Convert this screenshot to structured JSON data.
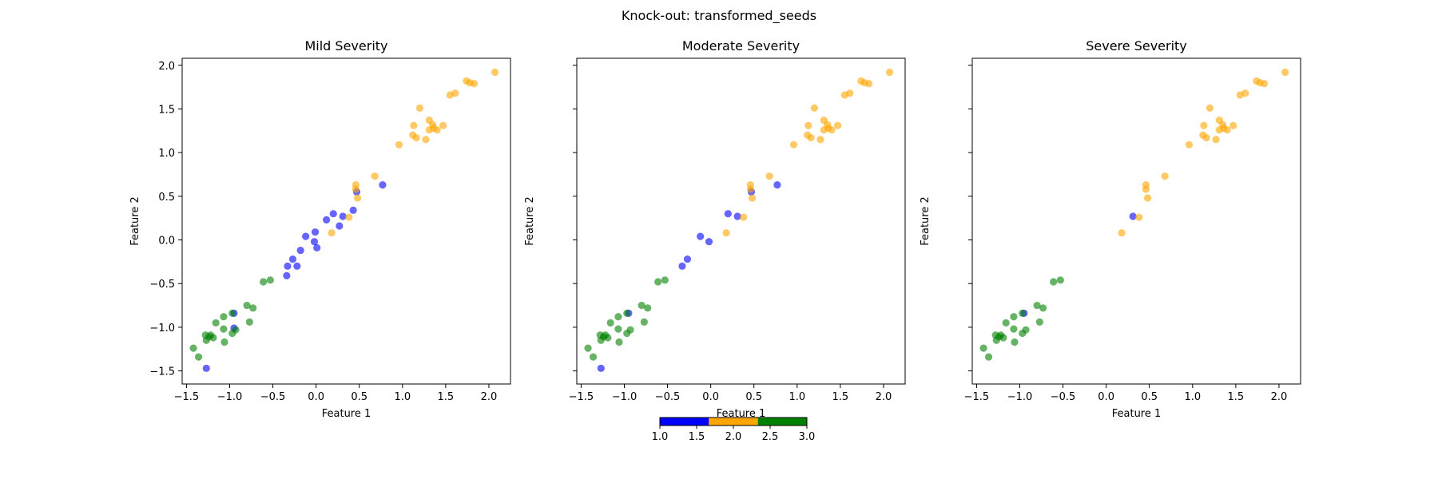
{
  "figure": {
    "title": "Knock-out: transformed_seeds"
  },
  "colorbar": {
    "colors": [
      "#0000ff",
      "#ffa500",
      "#008000"
    ],
    "ticks": [
      "1.0",
      "1.5",
      "2.0",
      "2.5",
      "3.0"
    ],
    "range": [
      1.0,
      3.0
    ]
  },
  "chart_data": [
    {
      "type": "scatter",
      "title": "Mild Severity",
      "xlabel": "Feature 1",
      "ylabel": "Feature 2",
      "xlim": [
        -1.55,
        2.25
      ],
      "ylim": [
        -1.65,
        2.08
      ],
      "xticks": [
        "−1.5",
        "−1.0",
        "−0.5",
        "0.0",
        "0.5",
        "1.0",
        "1.5",
        "2.0"
      ],
      "yticks": [
        "−1.5",
        "−1.0",
        "−0.5",
        "0.0",
        "0.5",
        "1.0",
        "1.5",
        "2.0"
      ],
      "series": [
        {
          "color": "#0000ff",
          "points": [
            [
              -1.27,
              -1.47
            ],
            [
              -0.95,
              -0.84
            ],
            [
              -0.95,
              -1.01
            ],
            [
              -0.34,
              -0.41
            ],
            [
              -0.33,
              -0.3
            ],
            [
              -0.27,
              -0.22
            ],
            [
              -0.22,
              -0.3
            ],
            [
              -0.18,
              -0.12
            ],
            [
              -0.12,
              0.04
            ],
            [
              -0.02,
              -0.02
            ],
            [
              -0.01,
              0.09
            ],
            [
              0.01,
              -0.09
            ],
            [
              0.12,
              0.23
            ],
            [
              0.2,
              0.3
            ],
            [
              0.27,
              0.16
            ],
            [
              0.31,
              0.27
            ],
            [
              0.43,
              0.34
            ],
            [
              0.47,
              0.55
            ],
            [
              0.77,
              0.63
            ]
          ]
        },
        {
          "color": "#ffa500",
          "points": [
            [
              0.18,
              0.08
            ],
            [
              0.38,
              0.26
            ],
            [
              0.46,
              0.63
            ],
            [
              0.46,
              0.58
            ],
            [
              0.48,
              0.48
            ],
            [
              0.68,
              0.73
            ],
            [
              0.96,
              1.09
            ],
            [
              1.12,
              1.2
            ],
            [
              1.13,
              1.31
            ],
            [
              1.16,
              1.17
            ],
            [
              1.2,
              1.51
            ],
            [
              1.27,
              1.15
            ],
            [
              1.31,
              1.37
            ],
            [
              1.31,
              1.26
            ],
            [
              1.35,
              1.32
            ],
            [
              1.36,
              1.28
            ],
            [
              1.4,
              1.26
            ],
            [
              1.47,
              1.31
            ],
            [
              1.55,
              1.66
            ],
            [
              1.61,
              1.68
            ],
            [
              1.74,
              1.82
            ],
            [
              1.78,
              1.8
            ],
            [
              1.83,
              1.79
            ],
            [
              2.07,
              1.92
            ]
          ]
        },
        {
          "color": "#008000",
          "points": [
            [
              -1.42,
              -1.24
            ],
            [
              -1.36,
              -1.34
            ],
            [
              -1.28,
              -1.09
            ],
            [
              -1.27,
              -1.15
            ],
            [
              -1.24,
              -1.11
            ],
            [
              -1.22,
              -1.09
            ],
            [
              -1.19,
              -1.12
            ],
            [
              -1.16,
              -0.95
            ],
            [
              -1.07,
              -0.88
            ],
            [
              -1.07,
              -1.02
            ],
            [
              -1.06,
              -1.17
            ],
            [
              -0.97,
              -0.84
            ],
            [
              -0.97,
              -1.07
            ],
            [
              -0.93,
              -1.03
            ],
            [
              -0.8,
              -0.75
            ],
            [
              -0.77,
              -0.94
            ],
            [
              -0.73,
              -0.78
            ],
            [
              -0.61,
              -0.48
            ],
            [
              -0.53,
              -0.46
            ]
          ]
        }
      ]
    },
    {
      "type": "scatter",
      "title": "Moderate Severity",
      "xlabel": "Feature 1",
      "ylabel": "Feature 2",
      "xlim": [
        -1.55,
        2.25
      ],
      "ylim": [
        -1.65,
        2.08
      ],
      "xticks": [
        "−1.5",
        "−1.0",
        "−0.5",
        "0.0",
        "0.5",
        "1.0",
        "1.5",
        "2.0"
      ],
      "yticks": [],
      "series": [
        {
          "color": "#0000ff",
          "points": [
            [
              -1.27,
              -1.47
            ],
            [
              -0.95,
              -0.84
            ],
            [
              -0.33,
              -0.3
            ],
            [
              -0.27,
              -0.22
            ],
            [
              -0.12,
              0.04
            ],
            [
              -0.02,
              -0.02
            ],
            [
              0.2,
              0.3
            ],
            [
              0.31,
              0.27
            ],
            [
              0.47,
              0.55
            ],
            [
              0.77,
              0.63
            ]
          ]
        },
        {
          "color": "#ffa500",
          "points": [
            [
              0.18,
              0.08
            ],
            [
              0.38,
              0.26
            ],
            [
              0.46,
              0.63
            ],
            [
              0.46,
              0.58
            ],
            [
              0.48,
              0.48
            ],
            [
              0.68,
              0.73
            ],
            [
              0.96,
              1.09
            ],
            [
              1.12,
              1.2
            ],
            [
              1.13,
              1.31
            ],
            [
              1.16,
              1.17
            ],
            [
              1.2,
              1.51
            ],
            [
              1.27,
              1.15
            ],
            [
              1.31,
              1.37
            ],
            [
              1.31,
              1.26
            ],
            [
              1.35,
              1.32
            ],
            [
              1.36,
              1.28
            ],
            [
              1.4,
              1.26
            ],
            [
              1.47,
              1.31
            ],
            [
              1.55,
              1.66
            ],
            [
              1.61,
              1.68
            ],
            [
              1.74,
              1.82
            ],
            [
              1.78,
              1.8
            ],
            [
              1.83,
              1.79
            ],
            [
              2.07,
              1.92
            ]
          ]
        },
        {
          "color": "#008000",
          "points": [
            [
              -1.42,
              -1.24
            ],
            [
              -1.36,
              -1.34
            ],
            [
              -1.28,
              -1.09
            ],
            [
              -1.27,
              -1.15
            ],
            [
              -1.24,
              -1.11
            ],
            [
              -1.22,
              -1.09
            ],
            [
              -1.19,
              -1.12
            ],
            [
              -1.16,
              -0.95
            ],
            [
              -1.07,
              -0.88
            ],
            [
              -1.07,
              -1.02
            ],
            [
              -1.06,
              -1.17
            ],
            [
              -0.97,
              -0.84
            ],
            [
              -0.97,
              -1.07
            ],
            [
              -0.93,
              -1.03
            ],
            [
              -0.8,
              -0.75
            ],
            [
              -0.77,
              -0.94
            ],
            [
              -0.73,
              -0.78
            ],
            [
              -0.61,
              -0.48
            ],
            [
              -0.53,
              -0.46
            ]
          ]
        }
      ]
    },
    {
      "type": "scatter",
      "title": "Severe Severity",
      "xlabel": "Feature 1",
      "ylabel": "Feature 2",
      "xlim": [
        -1.55,
        2.25
      ],
      "ylim": [
        -1.65,
        2.08
      ],
      "xticks": [
        "−1.5",
        "−1.0",
        "−0.5",
        "0.0",
        "0.5",
        "1.0",
        "1.5",
        "2.0"
      ],
      "yticks": [],
      "series": [
        {
          "color": "#0000ff",
          "points": [
            [
              -0.95,
              -0.84
            ],
            [
              0.31,
              0.27
            ]
          ]
        },
        {
          "color": "#ffa500",
          "points": [
            [
              0.18,
              0.08
            ],
            [
              0.38,
              0.26
            ],
            [
              0.46,
              0.63
            ],
            [
              0.46,
              0.58
            ],
            [
              0.48,
              0.48
            ],
            [
              0.68,
              0.73
            ],
            [
              0.96,
              1.09
            ],
            [
              1.12,
              1.2
            ],
            [
              1.13,
              1.31
            ],
            [
              1.16,
              1.17
            ],
            [
              1.2,
              1.51
            ],
            [
              1.27,
              1.15
            ],
            [
              1.31,
              1.37
            ],
            [
              1.31,
              1.26
            ],
            [
              1.35,
              1.32
            ],
            [
              1.36,
              1.28
            ],
            [
              1.4,
              1.26
            ],
            [
              1.47,
              1.31
            ],
            [
              1.55,
              1.66
            ],
            [
              1.61,
              1.68
            ],
            [
              1.74,
              1.82
            ],
            [
              1.78,
              1.8
            ],
            [
              1.83,
              1.79
            ],
            [
              2.07,
              1.92
            ]
          ]
        },
        {
          "color": "#008000",
          "points": [
            [
              -1.42,
              -1.24
            ],
            [
              -1.36,
              -1.34
            ],
            [
              -1.28,
              -1.09
            ],
            [
              -1.27,
              -1.15
            ],
            [
              -1.24,
              -1.11
            ],
            [
              -1.22,
              -1.09
            ],
            [
              -1.19,
              -1.12
            ],
            [
              -1.16,
              -0.95
            ],
            [
              -1.07,
              -0.88
            ],
            [
              -1.07,
              -1.02
            ],
            [
              -1.06,
              -1.17
            ],
            [
              -0.97,
              -0.84
            ],
            [
              -0.97,
              -1.07
            ],
            [
              -0.93,
              -1.03
            ],
            [
              -0.8,
              -0.75
            ],
            [
              -0.77,
              -0.94
            ],
            [
              -0.73,
              -0.78
            ],
            [
              -0.61,
              -0.48
            ],
            [
              -0.53,
              -0.46
            ]
          ]
        }
      ]
    }
  ]
}
